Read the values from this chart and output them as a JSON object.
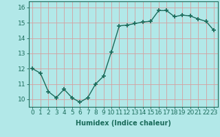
{
  "x": [
    0,
    1,
    2,
    3,
    4,
    5,
    6,
    7,
    8,
    9,
    10,
    11,
    12,
    13,
    14,
    15,
    16,
    17,
    18,
    19,
    20,
    21,
    22,
    23
  ],
  "y": [
    12.0,
    11.7,
    10.5,
    10.1,
    10.65,
    10.1,
    9.8,
    10.1,
    11.0,
    11.5,
    13.1,
    14.8,
    14.85,
    14.95,
    15.05,
    15.1,
    15.8,
    15.8,
    15.4,
    15.5,
    15.45,
    15.25,
    15.1,
    14.5
  ],
  "line_color": "#1a6b5a",
  "marker": "+",
  "marker_size": 4,
  "marker_lw": 1.2,
  "bg_color": "#b2e8e8",
  "grid_color": "#d4a0a0",
  "xlabel": "Humidex (Indice chaleur)",
  "xlabel_fontsize": 7,
  "xlabel_weight": "bold",
  "xtick_labels": [
    "0",
    "1",
    "2",
    "3",
    "4",
    "5",
    "6",
    "7",
    "8",
    "9",
    "10",
    "11",
    "12",
    "13",
    "14",
    "15",
    "16",
    "17",
    "18",
    "19",
    "20",
    "21",
    "22",
    "23"
  ],
  "ytick_labels": [
    10,
    11,
    12,
    13,
    14,
    15,
    16
  ],
  "ylim": [
    9.5,
    16.4
  ],
  "xlim": [
    -0.5,
    23.5
  ],
  "tick_fontsize": 6.5,
  "linewidth": 1.0
}
